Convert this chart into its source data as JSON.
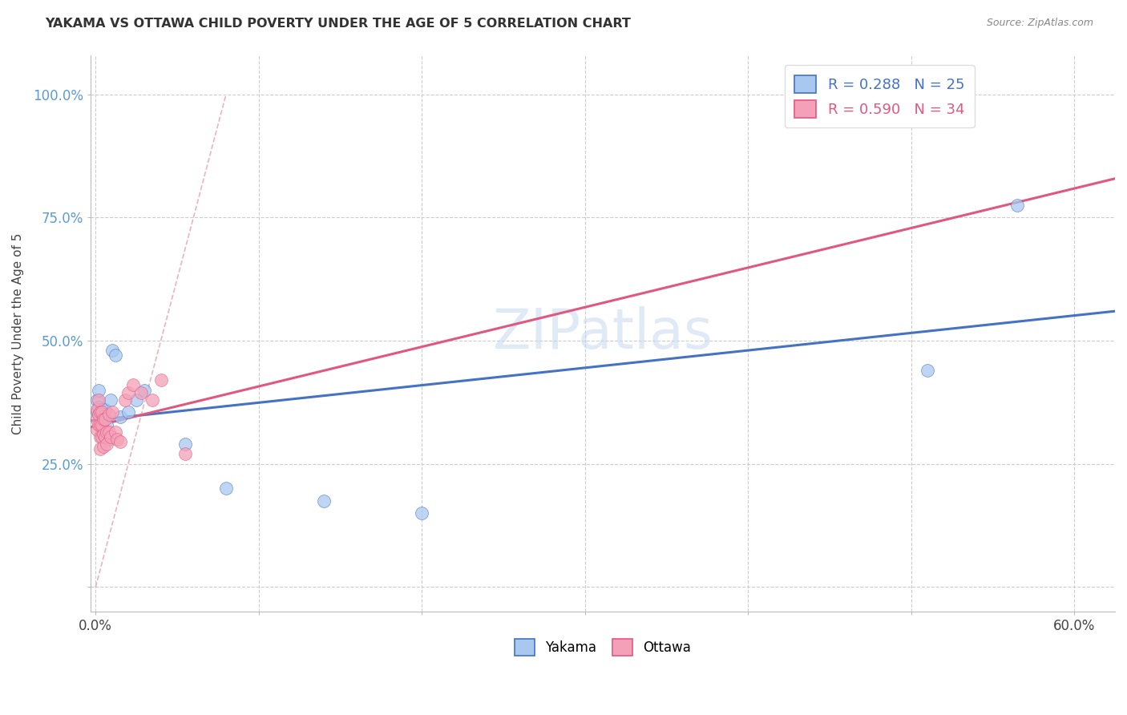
{
  "title": "YAKAMA VS OTTAWA CHILD POVERTY UNDER THE AGE OF 5 CORRELATION CHART",
  "source": "Source: ZipAtlas.com",
  "yakama_color": "#A8C8F0",
  "ottawa_color": "#F4A0B8",
  "yakama_line_color": "#4472C4",
  "ottawa_line_color": "#E05880",
  "ref_line_color": "#E8A0B0",
  "watermark_color": "#C8D8F0",
  "xlim": [
    -0.003,
    0.625
  ],
  "ylim": [
    -0.05,
    1.08
  ],
  "xticks": [
    0.0,
    0.1,
    0.2,
    0.3,
    0.4,
    0.5,
    0.6
  ],
  "xticklabels": [
    "0.0%",
    "",
    "",
    "",
    "",
    "",
    "60.0%"
  ],
  "yticks": [
    0.0,
    0.25,
    0.5,
    0.75,
    1.0
  ],
  "yticklabels": [
    "",
    "25.0%",
    "50.0%",
    "75.0%",
    "100.0%"
  ],
  "legend_r_yakama": "R = 0.288",
  "legend_n_yakama": "N = 25",
  "legend_r_ottawa": "R = 0.590",
  "legend_n_ottawa": "N = 34",
  "yakama_x": [
    0.001,
    0.001,
    0.002,
    0.002,
    0.003,
    0.003,
    0.004,
    0.004,
    0.005,
    0.006,
    0.007,
    0.008,
    0.009,
    0.01,
    0.012,
    0.015,
    0.02,
    0.025,
    0.03,
    0.055,
    0.08,
    0.14,
    0.2,
    0.51,
    0.565
  ],
  "yakama_y": [
    0.355,
    0.38,
    0.365,
    0.4,
    0.345,
    0.355,
    0.34,
    0.36,
    0.35,
    0.36,
    0.33,
    0.3,
    0.38,
    0.48,
    0.47,
    0.345,
    0.355,
    0.38,
    0.4,
    0.29,
    0.2,
    0.175,
    0.15,
    0.44,
    0.775
  ],
  "ottawa_x": [
    0.001,
    0.001,
    0.001,
    0.002,
    0.002,
    0.002,
    0.003,
    0.003,
    0.003,
    0.003,
    0.004,
    0.004,
    0.004,
    0.005,
    0.005,
    0.005,
    0.006,
    0.006,
    0.007,
    0.007,
    0.008,
    0.008,
    0.009,
    0.01,
    0.012,
    0.013,
    0.015,
    0.018,
    0.02,
    0.023,
    0.028,
    0.035,
    0.04,
    0.055
  ],
  "ottawa_y": [
    0.36,
    0.34,
    0.32,
    0.38,
    0.35,
    0.33,
    0.355,
    0.33,
    0.305,
    0.28,
    0.355,
    0.33,
    0.305,
    0.34,
    0.31,
    0.285,
    0.34,
    0.305,
    0.315,
    0.29,
    0.35,
    0.315,
    0.305,
    0.355,
    0.315,
    0.3,
    0.295,
    0.38,
    0.395,
    0.41,
    0.395,
    0.38,
    0.42,
    0.27
  ],
  "ref_line_x": [
    0.0,
    0.08
  ],
  "ref_line_y": [
    0.0,
    1.0
  ]
}
